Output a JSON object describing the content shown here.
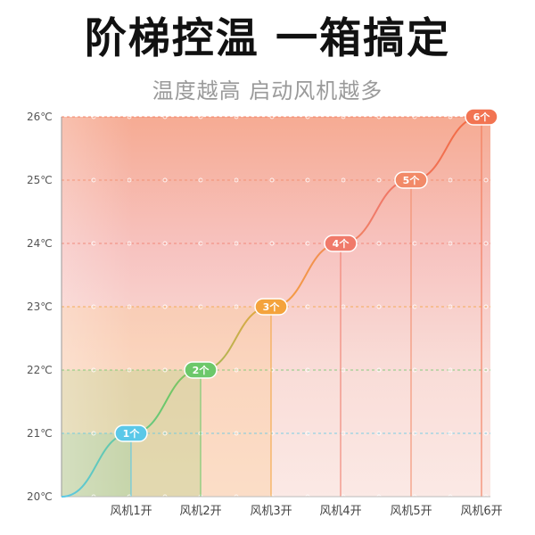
{
  "header": {
    "title": "阶梯控温 一箱搞定",
    "subtitle": "温度越高 启动风机越多"
  },
  "chart_data": {
    "type": "line",
    "title": "阶梯控温 一箱搞定",
    "subtitle": "温度越高 启动风机越多",
    "categories": [
      "风机1开",
      "风机2开",
      "风机3开",
      "风机4开",
      "风机5开",
      "风机6开"
    ],
    "y_ticks": [
      "20℃",
      "21℃",
      "22℃",
      "23℃",
      "24℃",
      "25℃",
      "26℃"
    ],
    "ylim": [
      20,
      26
    ],
    "grid": true,
    "series": [
      {
        "values": [
          21,
          22,
          23,
          24,
          25,
          26
        ],
        "point_labels": [
          "1个",
          "2个",
          "3个",
          "4个",
          "5个",
          "6个"
        ],
        "colors": [
          "#5bc8e8",
          "#6cc86a",
          "#f4a33c",
          "#f07a6a",
          "#f28a68",
          "#f27452"
        ]
      }
    ],
    "band_colors": [
      "#7fd9cf",
      "#8fd57f",
      "#fbc890",
      "#f8b3ad",
      "#f7aaa0",
      "#f49a80"
    ]
  }
}
